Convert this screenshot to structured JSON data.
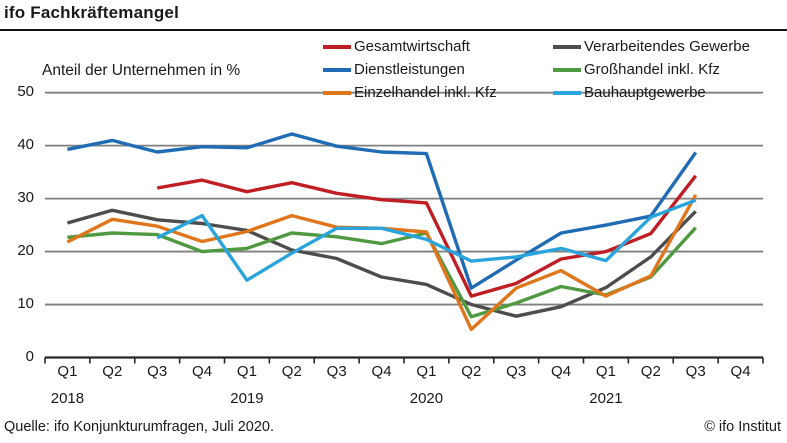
{
  "header": {
    "title": "ifo Fachkräftemangel"
  },
  "footer": {
    "source": "Quelle: ifo Konjunkturumfragen, Juli 2020.",
    "copyright": "© ifo Institut"
  },
  "chart_data": {
    "type": "line",
    "subtitle": "Anteil der Unternehmen in %",
    "ylabel": "Anteil der Unternehmen in %",
    "xlabel": "",
    "ylim": [
      0,
      50
    ],
    "yticks": [
      0,
      10,
      20,
      30,
      40,
      50
    ],
    "grid": "horizontal",
    "legend_position": "top",
    "x_quarters": [
      "Q1",
      "Q2",
      "Q3",
      "Q4",
      "Q1",
      "Q2",
      "Q3",
      "Q4",
      "Q1",
      "Q2",
      "Q3",
      "Q4",
      "Q1",
      "Q2",
      "Q3",
      "Q4"
    ],
    "x_years": [
      {
        "label": "2018",
        "quarter_index": 0
      },
      {
        "label": "2019",
        "quarter_index": 4
      },
      {
        "label": "2020",
        "quarter_index": 8
      },
      {
        "label": "2021",
        "quarter_index": 12
      }
    ],
    "series": [
      {
        "name": "Gesamtwirtschaft",
        "color": "#bf1e24",
        "values": [
          null,
          null,
          32.0,
          33.5,
          31.3,
          33.0,
          31.0,
          29.8,
          29.2,
          11.6,
          14.0,
          18.6,
          20.0,
          23.4,
          34.3,
          null
        ]
      },
      {
        "name": "Dienstleistungen",
        "color": "#1f6cb4",
        "values": [
          39.3,
          41.0,
          38.8,
          39.8,
          39.6,
          42.2,
          39.9,
          38.8,
          38.5,
          13.1,
          18.4,
          23.5,
          25.0,
          26.7,
          38.7,
          null
        ]
      },
      {
        "name": "Einzelhandel inkl. Kfz",
        "color": "#e0761b",
        "values": [
          21.8,
          26.1,
          24.8,
          21.9,
          23.8,
          26.8,
          24.6,
          24.4,
          23.7,
          5.3,
          13.1,
          16.4,
          11.6,
          15.4,
          30.7,
          null
        ]
      },
      {
        "name": "Verarbeitendes Gewerbe",
        "color": "#4d4d4d",
        "values": [
          25.4,
          27.8,
          26.0,
          25.3,
          24.0,
          20.3,
          18.7,
          15.2,
          13.8,
          10.0,
          7.8,
          9.6,
          13.2,
          19.0,
          27.6,
          null
        ]
      },
      {
        "name": "Großhandel inkl. Kfz",
        "color": "#4f9a41",
        "values": [
          22.7,
          23.5,
          23.2,
          20.0,
          20.6,
          23.5,
          22.8,
          21.5,
          23.5,
          7.7,
          10.3,
          13.4,
          11.8,
          15.2,
          24.5,
          null
        ]
      },
      {
        "name": "Bauhauptgewerbe",
        "color": "#2aa4dc",
        "values": [
          null,
          null,
          22.6,
          26.8,
          14.6,
          19.7,
          24.4,
          24.4,
          22.3,
          18.2,
          19.0,
          20.6,
          18.3,
          26.5,
          29.7,
          null
        ]
      }
    ]
  }
}
